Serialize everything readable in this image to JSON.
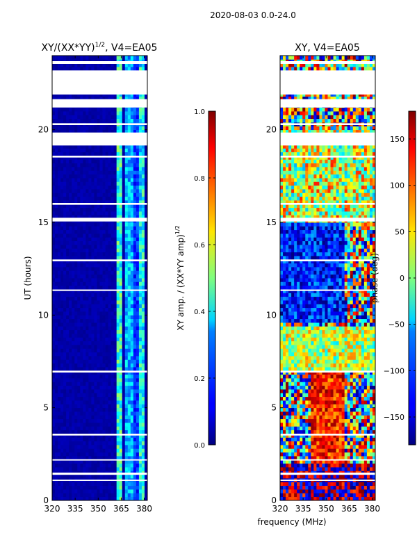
{
  "chart_data": {
    "suptitle": "2020-08-03 0.0-24.0",
    "shared_xlabel": "frequency (MHz)",
    "panels": [
      {
        "type": "heatmap",
        "title": "XY/(XX*YY)^1/2, V4=EA05",
        "title_main": "XY/(XX*YY)",
        "title_sup": "1/2",
        "title_rest": ", V4=EA05",
        "xlabel": "frequency (MHz)",
        "ylabel": "UT (hours)",
        "xlim": [
          320,
          382
        ],
        "ylim": [
          0,
          24
        ],
        "xticks": [
          320,
          335,
          350,
          365,
          380
        ],
        "yticks": [
          0,
          5,
          10,
          15,
          20
        ],
        "colorbar": {
          "label": "XY amp. / (XX*YY amp)^1/2",
          "label_main": "XY amp. / (XX*YY amp)",
          "label_sup": "1/2",
          "range": [
            0.0,
            1.0
          ],
          "ticks": [
            "0.0",
            "0.2",
            "0.4",
            "0.6",
            "0.8",
            "1.0"
          ],
          "tick_values": [
            0.0,
            0.2,
            0.4,
            0.6,
            0.8,
            1.0
          ]
        },
        "description": "Mostly low normalized amplitude (~0.0) across band; elevated amplitude (~0.3-0.5) in narrow channels near 362-380 MHz at all times."
      },
      {
        "type": "heatmap",
        "title": "XY, V4=EA05",
        "xlabel": "frequency (MHz)",
        "ylabel": "",
        "xlim": [
          320,
          382
        ],
        "ylim": [
          0,
          24
        ],
        "xticks": [
          320,
          335,
          350,
          365,
          380
        ],
        "yticks": [
          0,
          5,
          10,
          15,
          20
        ],
        "colorbar": {
          "label": "phase (deg)",
          "range": [
            -180,
            180
          ],
          "ticks": [
            "−150",
            "−100",
            "−50",
            "0",
            "50",
            "100",
            "150"
          ],
          "tick_values": [
            -150,
            -100,
            -50,
            0,
            50,
            100,
            150
          ]
        },
        "description": "XY phase mostly noisy; positive phases (~100-150) near 2-7 h around 345-360 MHz, negative phases (~-150) near 10-15 h."
      }
    ],
    "flagged_bands_hours": [
      [
        1.05,
        1.12
      ],
      [
        1.38,
        1.5
      ],
      [
        2.15,
        2.22
      ],
      [
        3.5,
        3.6
      ],
      [
        6.9,
        7.0
      ],
      [
        11.3,
        11.38
      ],
      [
        12.9,
        13.0
      ],
      [
        15.05,
        15.25
      ],
      [
        15.95,
        16.05
      ],
      [
        18.5,
        18.6
      ],
      [
        19.15,
        19.85
      ],
      [
        20.25,
        20.35
      ],
      [
        21.2,
        21.65
      ],
      [
        21.9,
        23.2
      ],
      [
        23.55,
        23.7
      ]
    ]
  },
  "colors": {
    "jet_dark_blue": "#00007f",
    "jet_blue": "#0000ff",
    "jet_cyan": "#00ffff",
    "jet_yellow": "#ffff00",
    "jet_red": "#ff0000",
    "jet_dark_red": "#7f0000"
  }
}
